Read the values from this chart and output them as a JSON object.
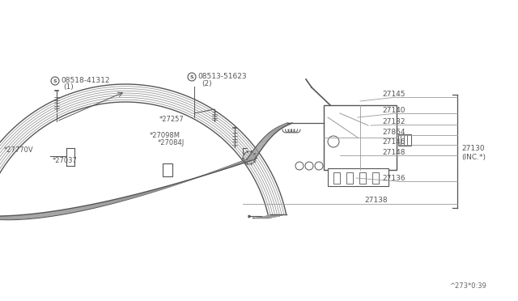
{
  "bg_color": "#ffffff",
  "line_color": "#999999",
  "dark_line": "#555555",
  "text_color": "#666666",
  "fig_width": 6.4,
  "fig_height": 3.72,
  "watermark": "^273*0:39",
  "parts": {
    "screw1_label": "08518-41312",
    "screw1_sub": "(1)",
    "screw2_label": "08513-51623",
    "screw2_sub": "(2)",
    "p27770v": "*27770V",
    "p27037": "*27037",
    "p27257": "*27257",
    "p27098m": "*27098M",
    "p27084j": "*27084J",
    "p27145": "27145",
    "p27140": "27140",
    "p27132": "27132",
    "p27864": "27864",
    "p27146": "27146",
    "p27148": "27148",
    "p27136": "27136",
    "p27138": "27138",
    "p27130_inc": "27130\n(INC.*)"
  }
}
